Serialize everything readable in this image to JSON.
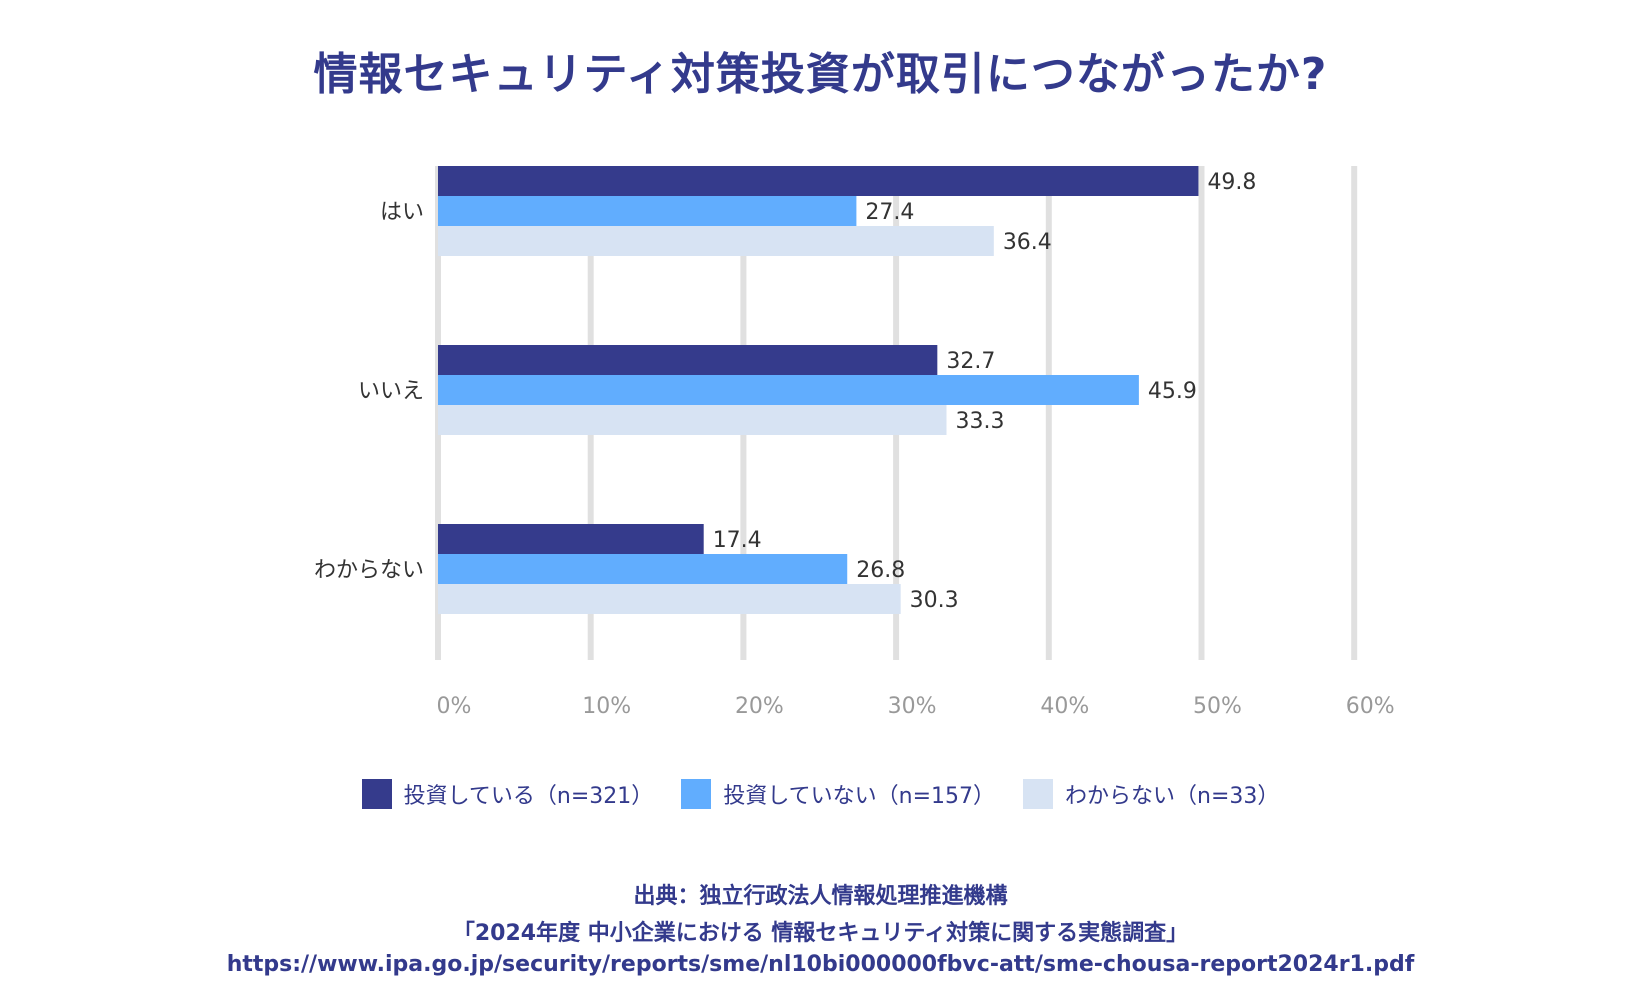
{
  "title": "情報セキュリティ対策投資が取引につながったか?",
  "chart_data": {
    "type": "bar",
    "orientation": "horizontal",
    "title": "情報セキュリティ対策投資が取引につながったか?",
    "categories": [
      "はい",
      "いいえ",
      "わからない"
    ],
    "series": [
      {
        "name": "投資している（n=321）",
        "color": "#353b8c",
        "values": [
          49.8,
          32.7,
          17.4
        ]
      },
      {
        "name": "投資していない（n=157）",
        "color": "#61adfe",
        "values": [
          27.4,
          45.9,
          26.8
        ]
      },
      {
        "name": "わからない（n=33）",
        "color": "#d7e3f3",
        "values": [
          36.4,
          33.3,
          30.3
        ]
      }
    ],
    "xlabel": "",
    "ylabel": "",
    "xlim": [
      0,
      60
    ],
    "xticks": [
      "0%",
      "10%",
      "20%",
      "30%",
      "40%",
      "50%",
      "60%"
    ],
    "grid": true,
    "legend_position": "bottom"
  },
  "legend": [
    {
      "label": "投資している（n=321）",
      "color": "#353b8c"
    },
    {
      "label": "投資していない（n=157）",
      "color": "#61adfe"
    },
    {
      "label": "わからない（n=33）",
      "color": "#d7e3f3"
    }
  ],
  "source": {
    "line1": "出典：独立行政法人情報処理推進機構",
    "line2": "「2024年度 中小企業における 情報セキュリティ対策に関する実態調査」",
    "line3": "https://www.ipa.go.jp/security/reports/sme/nl10bi000000fbvc-att/sme-chousa-report2024r1.pdf"
  },
  "colors": {
    "gridline": "#e0e0e0",
    "accent": "#333a8c"
  }
}
